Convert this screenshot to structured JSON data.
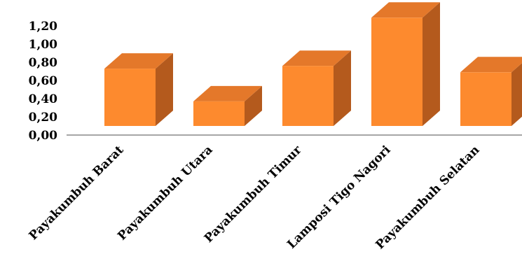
{
  "chart_data": {
    "type": "bar",
    "style": "3d-column",
    "categories": [
      "Payakumbuh Barat",
      "Payakumbuh Utara",
      "Payakumbuh Timur",
      "Lamposi Tigo Nagori",
      "Payakumbuh Selatan"
    ],
    "values": [
      0.63,
      0.27,
      0.66,
      1.19,
      0.59
    ],
    "ytick_labels": [
      "0,00",
      "0,20",
      "0,40",
      "0,60",
      "0,80",
      "1,00",
      "1,20"
    ],
    "ytick_values": [
      0,
      0.2,
      0.4,
      0.6,
      0.8,
      1.0,
      1.2
    ],
    "ylim": [
      0,
      1.2
    ],
    "grid": false,
    "legend": "none",
    "colors": {
      "front": "#FD8A2E",
      "top": "#E4782A",
      "side": "#B45A1D",
      "axis": "#A6A6A6"
    }
  }
}
